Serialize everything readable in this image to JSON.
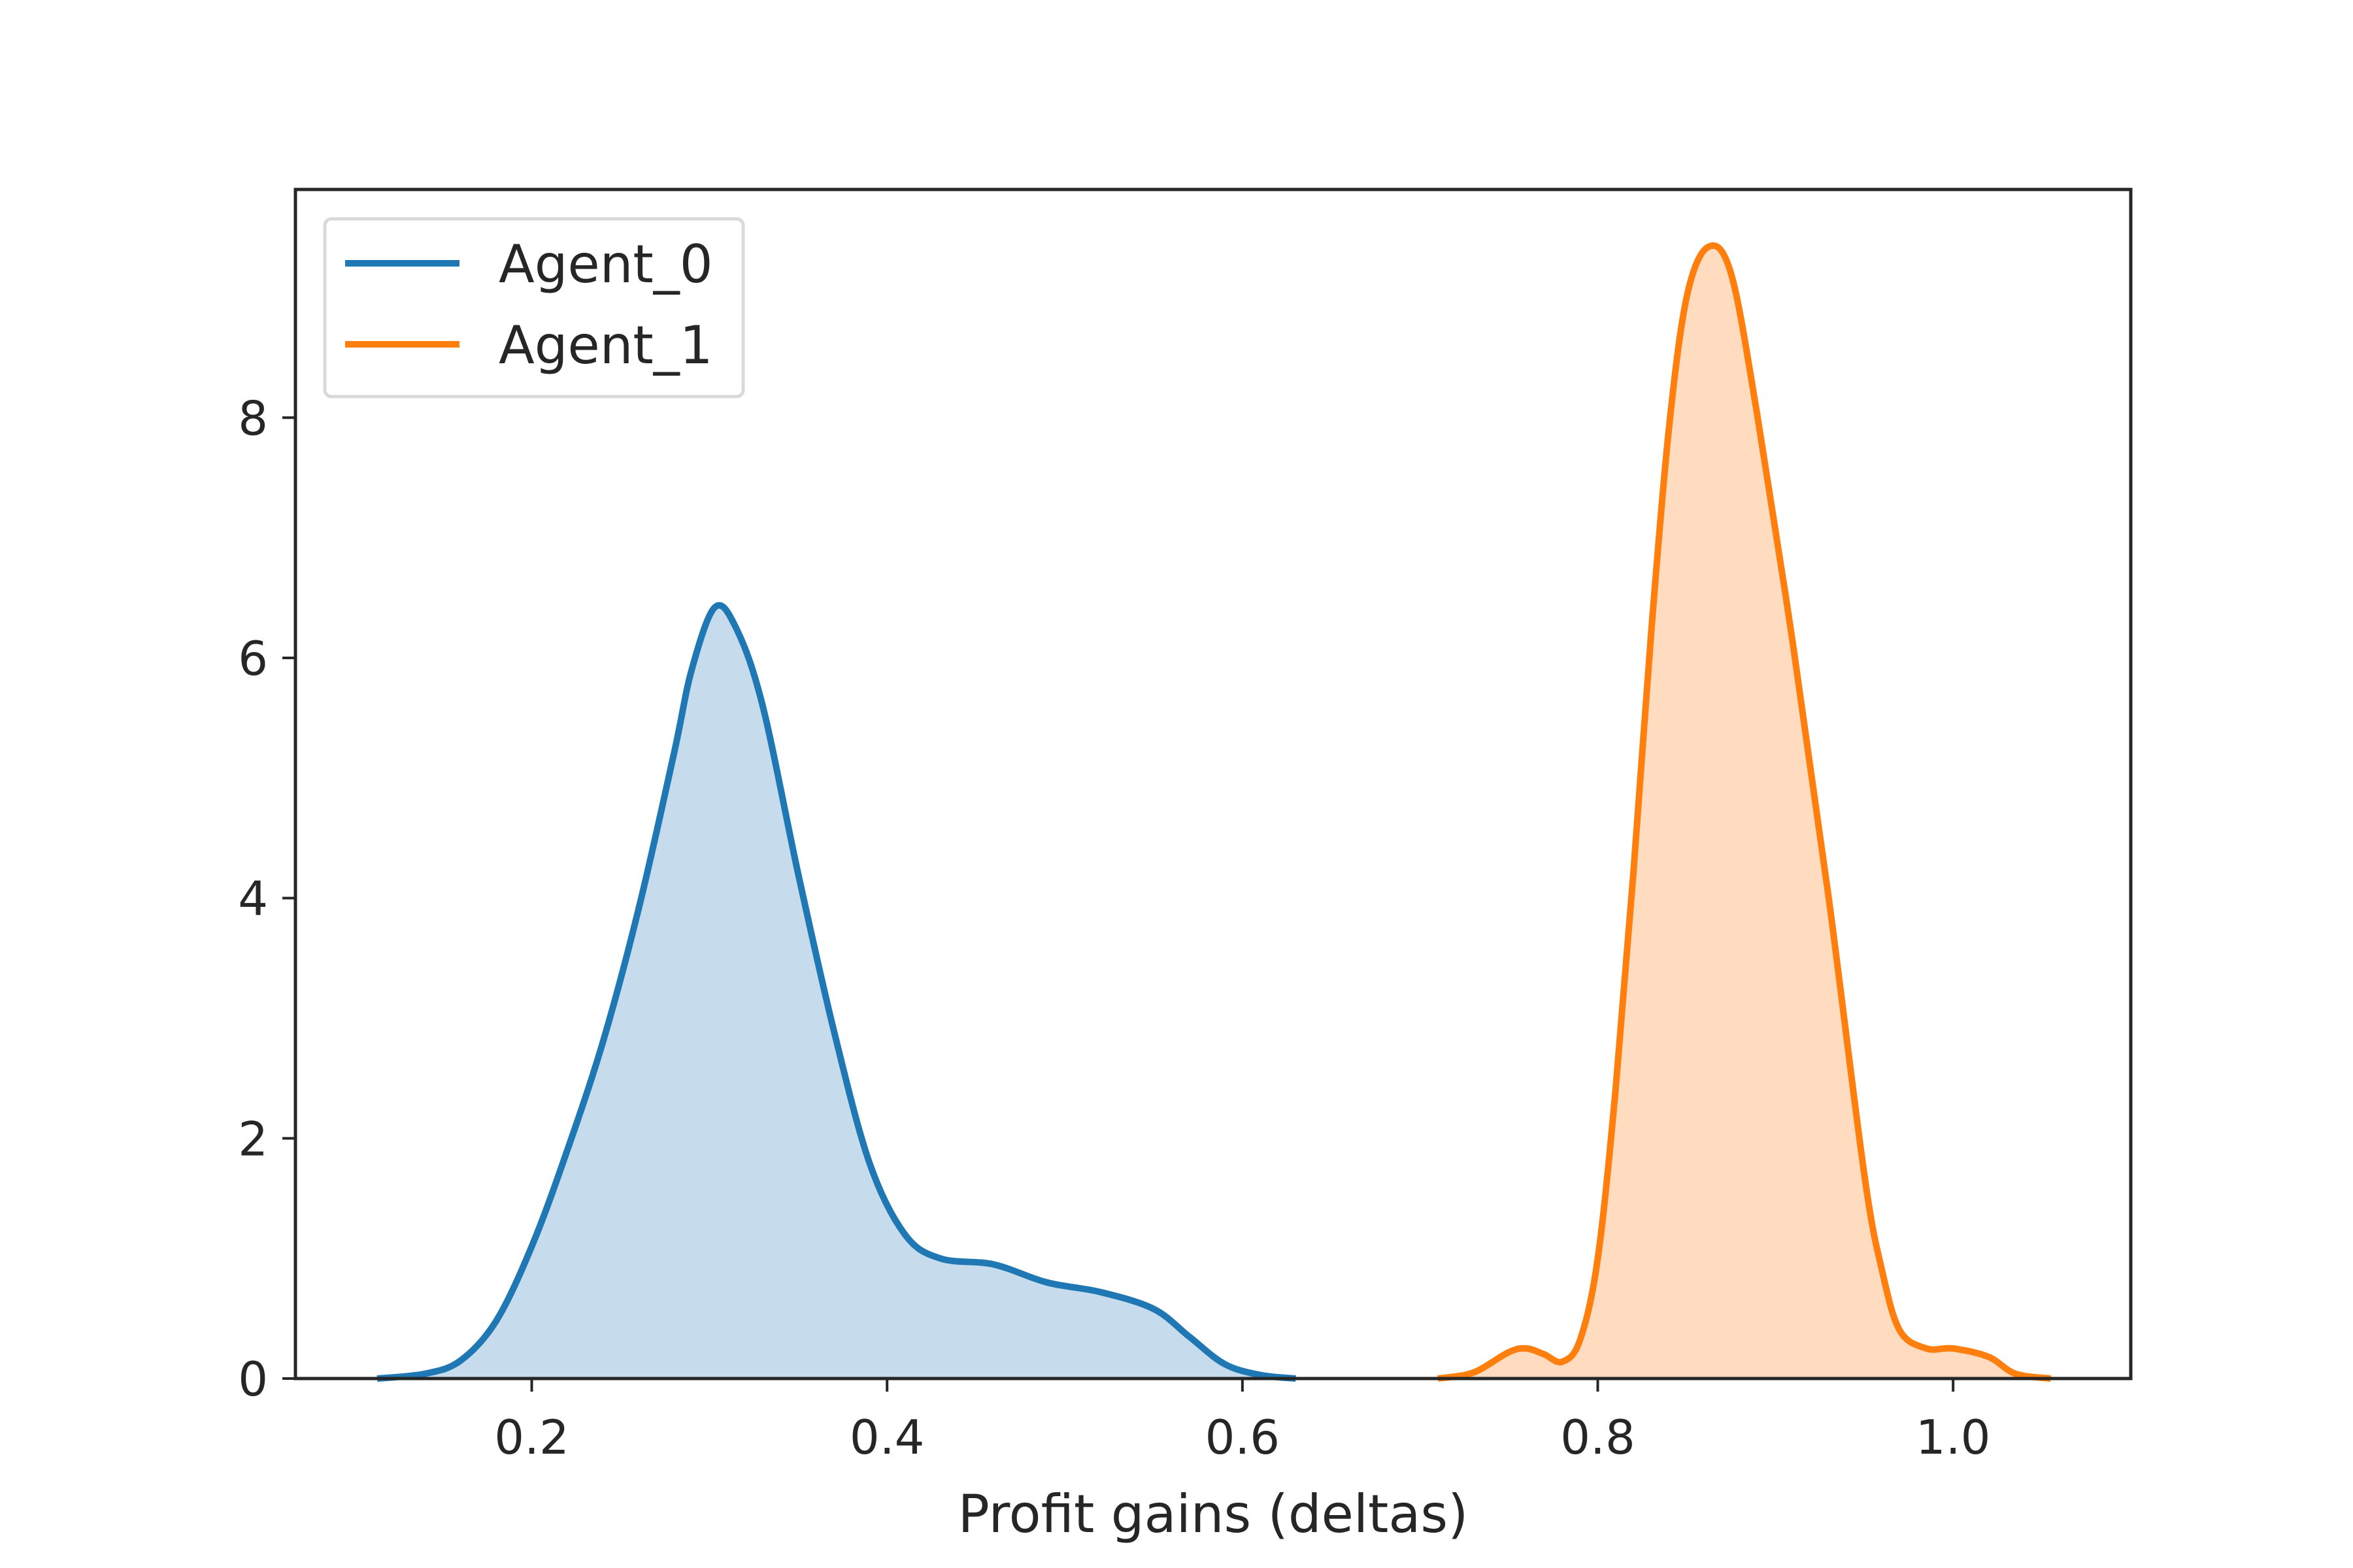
{
  "chart_data": {
    "type": "area",
    "title": "",
    "xlabel": "Profit gains (deltas)",
    "ylabel": "",
    "xlim": [
      0.067,
      1.1
    ],
    "ylim": [
      0,
      9.9
    ],
    "x_ticks": [
      0.2,
      0.4,
      0.6,
      0.8,
      1.0
    ],
    "x_tick_labels": [
      "0.2",
      "0.4",
      "0.6",
      "0.8",
      "1.0"
    ],
    "y_ticks": [
      0,
      2,
      4,
      6,
      8
    ],
    "y_tick_labels": [
      "0",
      "2",
      "4",
      "6",
      "8"
    ],
    "grid": false,
    "legend_placement": "top-left",
    "series": [
      {
        "name": "Agent_0",
        "color": "#1f77b4",
        "fill_color": "#c6dbec",
        "points": [
          [
            0.113,
            0.0
          ],
          [
            0.14,
            0.04
          ],
          [
            0.16,
            0.15
          ],
          [
            0.18,
            0.48
          ],
          [
            0.2,
            1.1
          ],
          [
            0.22,
            1.9
          ],
          [
            0.24,
            2.8
          ],
          [
            0.26,
            3.9
          ],
          [
            0.28,
            5.2
          ],
          [
            0.29,
            5.9
          ],
          [
            0.303,
            6.42
          ],
          [
            0.315,
            6.25
          ],
          [
            0.33,
            5.6
          ],
          [
            0.35,
            4.2
          ],
          [
            0.37,
            2.9
          ],
          [
            0.39,
            1.8
          ],
          [
            0.41,
            1.2
          ],
          [
            0.43,
            1.0
          ],
          [
            0.46,
            0.95
          ],
          [
            0.49,
            0.8
          ],
          [
            0.52,
            0.72
          ],
          [
            0.55,
            0.58
          ],
          [
            0.57,
            0.35
          ],
          [
            0.59,
            0.12
          ],
          [
            0.61,
            0.03
          ],
          [
            0.63,
            0.0
          ]
        ]
      },
      {
        "name": "Agent_1",
        "color": "#ff7f0e",
        "fill_color": "#ffdcc0",
        "points": [
          [
            0.71,
            0.0
          ],
          [
            0.73,
            0.05
          ],
          [
            0.75,
            0.22
          ],
          [
            0.76,
            0.25
          ],
          [
            0.77,
            0.2
          ],
          [
            0.78,
            0.14
          ],
          [
            0.79,
            0.32
          ],
          [
            0.8,
            1.0
          ],
          [
            0.81,
            2.4
          ],
          [
            0.82,
            4.2
          ],
          [
            0.83,
            6.2
          ],
          [
            0.84,
            7.9
          ],
          [
            0.85,
            9.0
          ],
          [
            0.862,
            9.42
          ],
          [
            0.875,
            9.2
          ],
          [
            0.89,
            8.0
          ],
          [
            0.91,
            6.1
          ],
          [
            0.93,
            4.0
          ],
          [
            0.95,
            1.7
          ],
          [
            0.96,
            0.9
          ],
          [
            0.97,
            0.4
          ],
          [
            0.985,
            0.25
          ],
          [
            1.0,
            0.25
          ],
          [
            1.02,
            0.18
          ],
          [
            1.035,
            0.04
          ],
          [
            1.055,
            0.0
          ]
        ]
      }
    ]
  }
}
